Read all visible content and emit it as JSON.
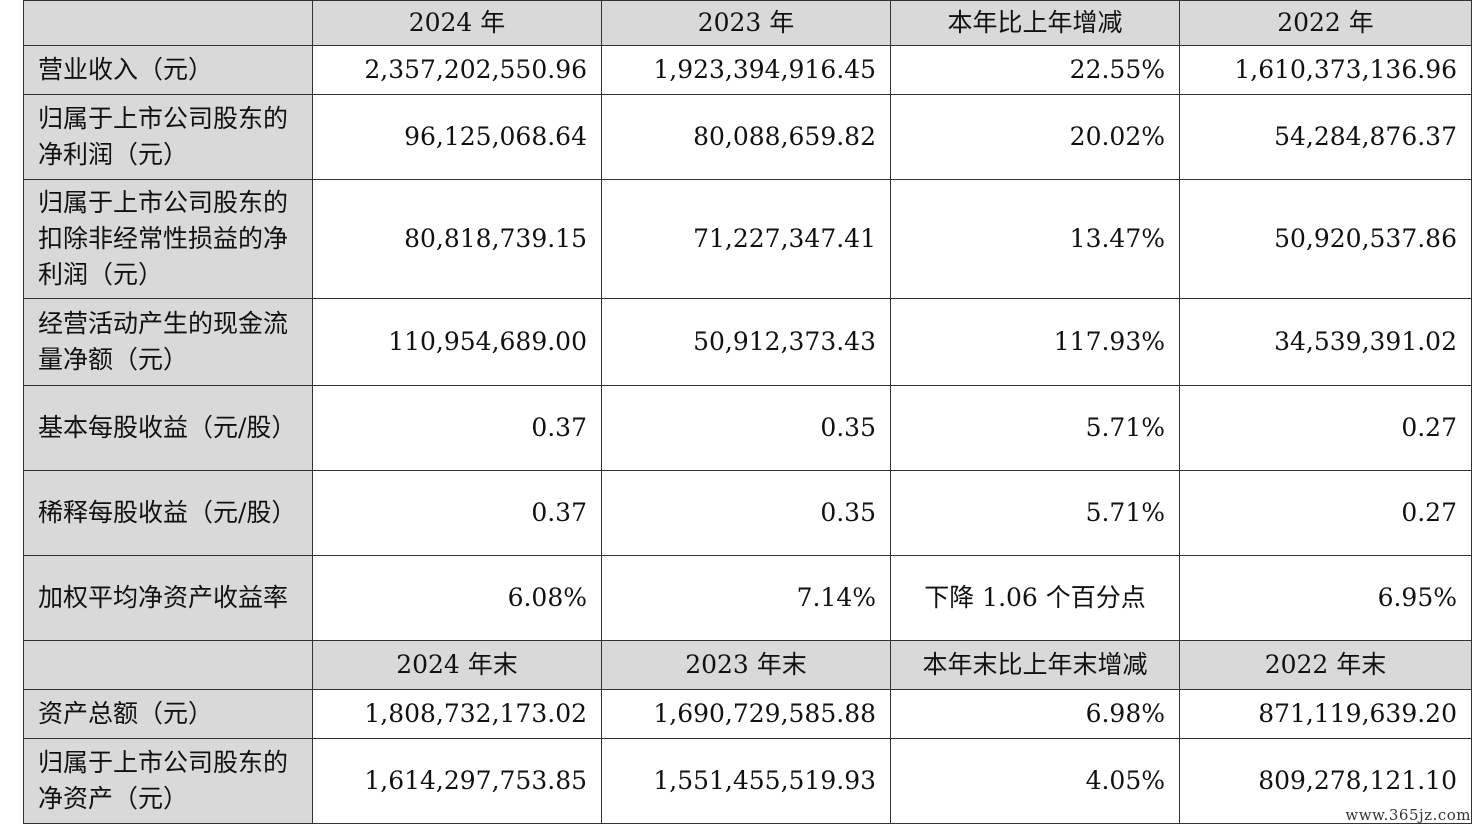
{
  "header": {
    "blank": "",
    "col1": "2024 年",
    "col2": "2023 年",
    "col3": "本年比上年增减",
    "col4": "2022 年"
  },
  "rows": [
    {
      "label": "营业收入（元）",
      "v2024": "2,357,202,550.96",
      "v2023": "1,923,394,916.45",
      "change": "22.55%",
      "v2022": "1,610,373,136.96"
    },
    {
      "label": "归属于上市公司股东的净利润（元）",
      "v2024": "96,125,068.64",
      "v2023": "80,088,659.82",
      "change": "20.02%",
      "v2022": "54,284,876.37"
    },
    {
      "label": "归属于上市公司股东的扣除非经常性损益的净利润（元）",
      "v2024": "80,818,739.15",
      "v2023": "71,227,347.41",
      "change": "13.47%",
      "v2022": "50,920,537.86"
    },
    {
      "label": "经营活动产生的现金流量净额（元）",
      "v2024": "110,954,689.00",
      "v2023": "50,912,373.43",
      "change": "117.93%",
      "v2022": "34,539,391.02"
    },
    {
      "label": "基本每股收益（元/股）",
      "v2024": "0.37",
      "v2023": "0.35",
      "change": "5.71%",
      "v2022": "0.27"
    },
    {
      "label": "稀释每股收益（元/股）",
      "v2024": "0.37",
      "v2023": "0.35",
      "change": "5.71%",
      "v2022": "0.27"
    },
    {
      "label": "加权平均净资产收益率",
      "v2024": "6.08%",
      "v2023": "7.14%",
      "change": "下降 1.06 个百分点",
      "v2022": "6.95%"
    }
  ],
  "header2": {
    "blank": "",
    "col1": "2024 年末",
    "col2": "2023 年末",
    "col3": "本年末比上年末增减",
    "col4": "2022 年末"
  },
  "rows2": [
    {
      "label": "资产总额（元）",
      "v2024": "1,808,732,173.02",
      "v2023": "1,690,729,585.88",
      "change": "6.98%",
      "v2022": "871,119,639.20"
    },
    {
      "label": "归属于上市公司股东的净资产（元）",
      "v2024": "1,614,297,753.85",
      "v2023": "1,551,455,519.93",
      "change": "4.05%",
      "v2022": "809,278,121.10"
    }
  ],
  "watermark": "www.365jz.com"
}
